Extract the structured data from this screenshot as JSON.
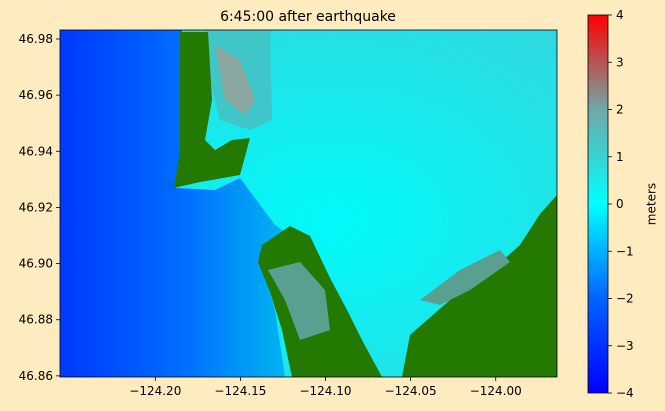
{
  "chart_data": {
    "type": "heatmap",
    "title": "6:45:00 after earthquake",
    "xlim": [
      -124.256,
      -123.964
    ],
    "ylim": [
      46.8596,
      46.9832
    ],
    "xticks": [
      {
        "value": -124.2,
        "label": "−124.20"
      },
      {
        "value": -124.15,
        "label": "−124.15"
      },
      {
        "value": -124.1,
        "label": "−124.10"
      },
      {
        "value": -124.05,
        "label": "−124.05"
      },
      {
        "value": -124.0,
        "label": "−124.00"
      }
    ],
    "yticks": [
      46.86,
      46.88,
      {
        "value": 46.9,
        "label": "46.90"
      },
      46.92,
      46.94,
      46.96,
      46.98
    ],
    "colorbar": {
      "label": "meters",
      "clim": [
        -4,
        4
      ],
      "ticks": [
        {
          "value": -4,
          "label": "−4"
        },
        {
          "value": -3,
          "label": "−3"
        },
        {
          "value": -2,
          "label": "−2"
        },
        {
          "value": -1,
          "label": "−1"
        },
        0,
        1,
        2,
        3,
        4
      ],
      "colormap": [
        "#0000ff",
        "#0064ff",
        "#00ffff",
        "#70a8a8",
        "#ff0000"
      ]
    }
  }
}
